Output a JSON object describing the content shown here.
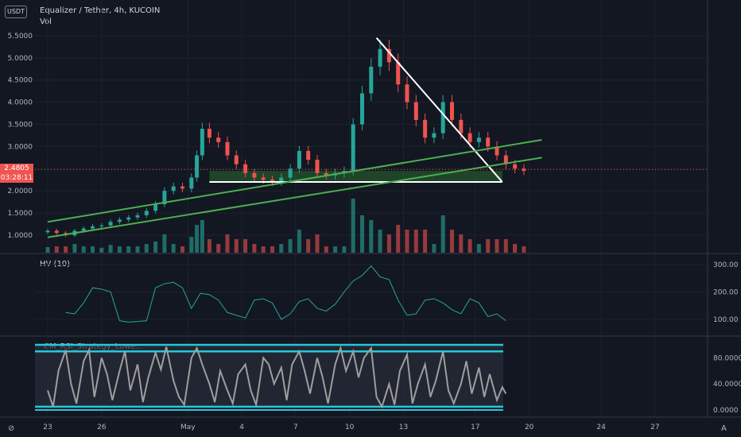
{
  "header": {
    "currency_badge": "USDT",
    "title": "Equalizer / Tether, 4h, KUCOIN",
    "volume_label": "Vol",
    "last_price": "2.4805",
    "countdown": "03:28:11"
  },
  "panes": {
    "hv_label": "HV (10)",
    "rsi_label": "CM_RSI_Strategy_Lowe..."
  },
  "corner_labels": {
    "left": "⊘",
    "right": "A"
  },
  "colors": {
    "background": "#131722",
    "up": "#26a69a",
    "down": "#ef5350",
    "trend_green": "#4caf50",
    "triangle": "#ffffff",
    "hv_line": "#26a69a",
    "rsi_line": "#9e9e9e",
    "rsi_bands": "#26c6da"
  },
  "chart_data": [
    {
      "type": "candlestick",
      "title": "Equalizer / Tether, 4h, KUCOIN",
      "y_ticks": [
        "5.5000",
        "5.0000",
        "4.5000",
        "4.0000",
        "3.5000",
        "3.0000",
        "2.5000",
        "2.0000",
        "1.5000",
        "1.0000"
      ],
      "x_ticks": [
        "23",
        "26",
        "May",
        "4",
        "7",
        "10",
        "13",
        "17",
        "20",
        "24",
        "27"
      ],
      "ylim": [
        0.9,
        5.6
      ],
      "last_price": 2.4805,
      "series_close": [
        [
          23,
          1.1
        ],
        [
          23.5,
          1.05
        ],
        [
          24,
          1.0
        ],
        [
          24.5,
          1.1
        ],
        [
          25,
          1.15
        ],
        [
          25.5,
          1.2
        ],
        [
          26,
          1.22
        ],
        [
          26.5,
          1.3
        ],
        [
          27,
          1.35
        ],
        [
          27.5,
          1.4
        ],
        [
          28,
          1.45
        ],
        [
          28.5,
          1.55
        ],
        [
          29,
          1.7
        ],
        [
          29.5,
          2.0
        ],
        [
          30,
          2.1
        ],
        [
          30.5,
          2.05
        ],
        [
          31,
          2.3
        ],
        [
          31.3,
          2.8
        ],
        [
          31.6,
          3.4
        ],
        [
          32,
          3.2
        ],
        [
          32.5,
          3.1
        ],
        [
          33,
          2.8
        ],
        [
          33.5,
          2.6
        ],
        [
          34,
          2.4
        ],
        [
          34.5,
          2.3
        ],
        [
          35,
          2.25
        ],
        [
          35.5,
          2.2
        ],
        [
          36,
          2.3
        ],
        [
          36.5,
          2.5
        ],
        [
          37,
          2.9
        ],
        [
          37.5,
          2.7
        ],
        [
          38,
          2.4
        ],
        [
          38.5,
          2.35
        ],
        [
          39,
          2.4
        ],
        [
          39.5,
          2.45
        ],
        [
          40,
          3.5
        ],
        [
          40.5,
          4.2
        ],
        [
          41,
          4.8
        ],
        [
          41.5,
          5.2
        ],
        [
          42,
          4.9
        ],
        [
          42.5,
          4.4
        ],
        [
          43,
          4.0
        ],
        [
          43.5,
          3.6
        ],
        [
          44,
          3.2
        ],
        [
          44.5,
          3.3
        ],
        [
          45,
          4.0
        ],
        [
          45.5,
          3.6
        ],
        [
          46,
          3.3
        ],
        [
          46.5,
          3.1
        ],
        [
          47,
          3.2
        ],
        [
          47.5,
          3.0
        ],
        [
          48,
          2.8
        ],
        [
          48.5,
          2.6
        ],
        [
          49,
          2.5
        ],
        [
          49.5,
          2.45
        ]
      ],
      "annotations": [
        {
          "name": "descending-trendline",
          "from": [
            41.3,
            5.45
          ],
          "to": [
            48.3,
            2.2
          ]
        },
        {
          "name": "horizontal-support",
          "from": [
            32.0,
            2.2
          ],
          "to": [
            48.3,
            2.2
          ]
        },
        {
          "name": "upper-channel-line",
          "from": [
            23.0,
            1.3
          ],
          "to": [
            50.5,
            3.15
          ]
        },
        {
          "name": "lower-channel-line",
          "from": [
            23.0,
            0.95
          ],
          "to": [
            50.5,
            2.75
          ]
        },
        {
          "name": "support-zone",
          "from": [
            32.0,
            2.2
          ],
          "to": [
            48.3,
            2.45
          ]
        }
      ]
    },
    {
      "type": "line",
      "title": "HV (10)",
      "y_ticks": [
        "300.00",
        "200.00",
        "100.00"
      ],
      "ylim": [
        60,
        320
      ],
      "series": [
        {
          "values": [
            [
              24,
              125
            ],
            [
              24.5,
              120
            ],
            [
              25,
              160
            ],
            [
              25.5,
              215
            ],
            [
              26,
              210
            ],
            [
              26.5,
              200
            ],
            [
              27,
              95
            ],
            [
              27.5,
              90
            ],
            [
              28,
              92
            ],
            [
              28.5,
              95
            ],
            [
              29,
              215
            ],
            [
              29.5,
              230
            ],
            [
              30,
              235
            ],
            [
              30.5,
              215
            ],
            [
              31,
              140
            ],
            [
              31.5,
              195
            ],
            [
              32,
              190
            ],
            [
              32.5,
              170
            ],
            [
              33,
              125
            ],
            [
              33.5,
              115
            ],
            [
              34,
              105
            ],
            [
              34.5,
              170
            ],
            [
              35,
              175
            ],
            [
              35.5,
              160
            ],
            [
              36,
              100
            ],
            [
              36.5,
              120
            ],
            [
              37,
              165
            ],
            [
              37.5,
              175
            ],
            [
              38,
              140
            ],
            [
              38.5,
              130
            ],
            [
              39,
              155
            ],
            [
              39.5,
              200
            ],
            [
              40,
              240
            ],
            [
              40.5,
              260
            ],
            [
              41,
              295
            ],
            [
              41.5,
              255
            ],
            [
              42,
              245
            ],
            [
              42.5,
              170
            ],
            [
              43,
              115
            ],
            [
              43.5,
              120
            ],
            [
              44,
              170
            ],
            [
              44.5,
              175
            ],
            [
              45,
              160
            ],
            [
              45.5,
              135
            ],
            [
              46,
              120
            ],
            [
              46.5,
              175
            ],
            [
              47,
              160
            ],
            [
              47.5,
              110
            ],
            [
              48,
              120
            ],
            [
              48.5,
              95
            ]
          ]
        }
      ]
    },
    {
      "type": "line",
      "title": "CM_RSI_Strategy_Lowe...",
      "y_ticks": [
        "80.0000",
        "40.0000",
        "0.0000"
      ],
      "ylim": [
        0,
        100
      ],
      "bands": [
        5,
        100,
        90
      ],
      "series": [
        {
          "values": [
            [
              23.0,
              30
            ],
            [
              23.3,
              5
            ],
            [
              23.6,
              60
            ],
            [
              24.0,
              92
            ],
            [
              24.3,
              40
            ],
            [
              24.6,
              10
            ],
            [
              25.0,
              75
            ],
            [
              25.3,
              92
            ],
            [
              25.6,
              20
            ],
            [
              26.0,
              80
            ],
            [
              26.3,
              55
            ],
            [
              26.6,
              15
            ],
            [
              27.0,
              60
            ],
            [
              27.3,
              90
            ],
            [
              27.6,
              30
            ],
            [
              28.0,
              70
            ],
            [
              28.3,
              12
            ],
            [
              28.6,
              50
            ],
            [
              29.0,
              88
            ],
            [
              29.3,
              62
            ],
            [
              29.6,
              97
            ],
            [
              30.0,
              45
            ],
            [
              30.3,
              20
            ],
            [
              30.6,
              8
            ],
            [
              31.0,
              80
            ],
            [
              31.3,
              95
            ],
            [
              31.6,
              70
            ],
            [
              32.0,
              40
            ],
            [
              32.3,
              12
            ],
            [
              32.6,
              60
            ],
            [
              33.0,
              30
            ],
            [
              33.3,
              10
            ],
            [
              33.6,
              55
            ],
            [
              34.0,
              70
            ],
            [
              34.3,
              30
            ],
            [
              34.6,
              8
            ],
            [
              35.0,
              80
            ],
            [
              35.3,
              70
            ],
            [
              35.6,
              40
            ],
            [
              36.0,
              65
            ],
            [
              36.3,
              15
            ],
            [
              36.6,
              70
            ],
            [
              37.0,
              90
            ],
            [
              37.3,
              60
            ],
            [
              37.6,
              25
            ],
            [
              38.0,
              80
            ],
            [
              38.3,
              50
            ],
            [
              38.6,
              10
            ],
            [
              39.0,
              70
            ],
            [
              39.3,
              95
            ],
            [
              39.6,
              60
            ],
            [
              40.0,
              90
            ],
            [
              40.3,
              50
            ],
            [
              40.6,
              80
            ],
            [
              41.0,
              95
            ],
            [
              41.3,
              20
            ],
            [
              41.6,
              5
            ],
            [
              42.0,
              40
            ],
            [
              42.3,
              8
            ],
            [
              42.6,
              60
            ],
            [
              43.0,
              85
            ],
            [
              43.3,
              10
            ],
            [
              43.6,
              40
            ],
            [
              44.0,
              70
            ],
            [
              44.3,
              20
            ],
            [
              44.6,
              45
            ],
            [
              45.0,
              90
            ],
            [
              45.3,
              30
            ],
            [
              45.6,
              10
            ],
            [
              46.0,
              40
            ],
            [
              46.3,
              75
            ],
            [
              46.6,
              25
            ],
            [
              47.0,
              65
            ],
            [
              47.3,
              20
            ],
            [
              47.6,
              55
            ],
            [
              48.0,
              15
            ],
            [
              48.3,
              35
            ],
            [
              48.5,
              25
            ]
          ]
        }
      ]
    }
  ]
}
